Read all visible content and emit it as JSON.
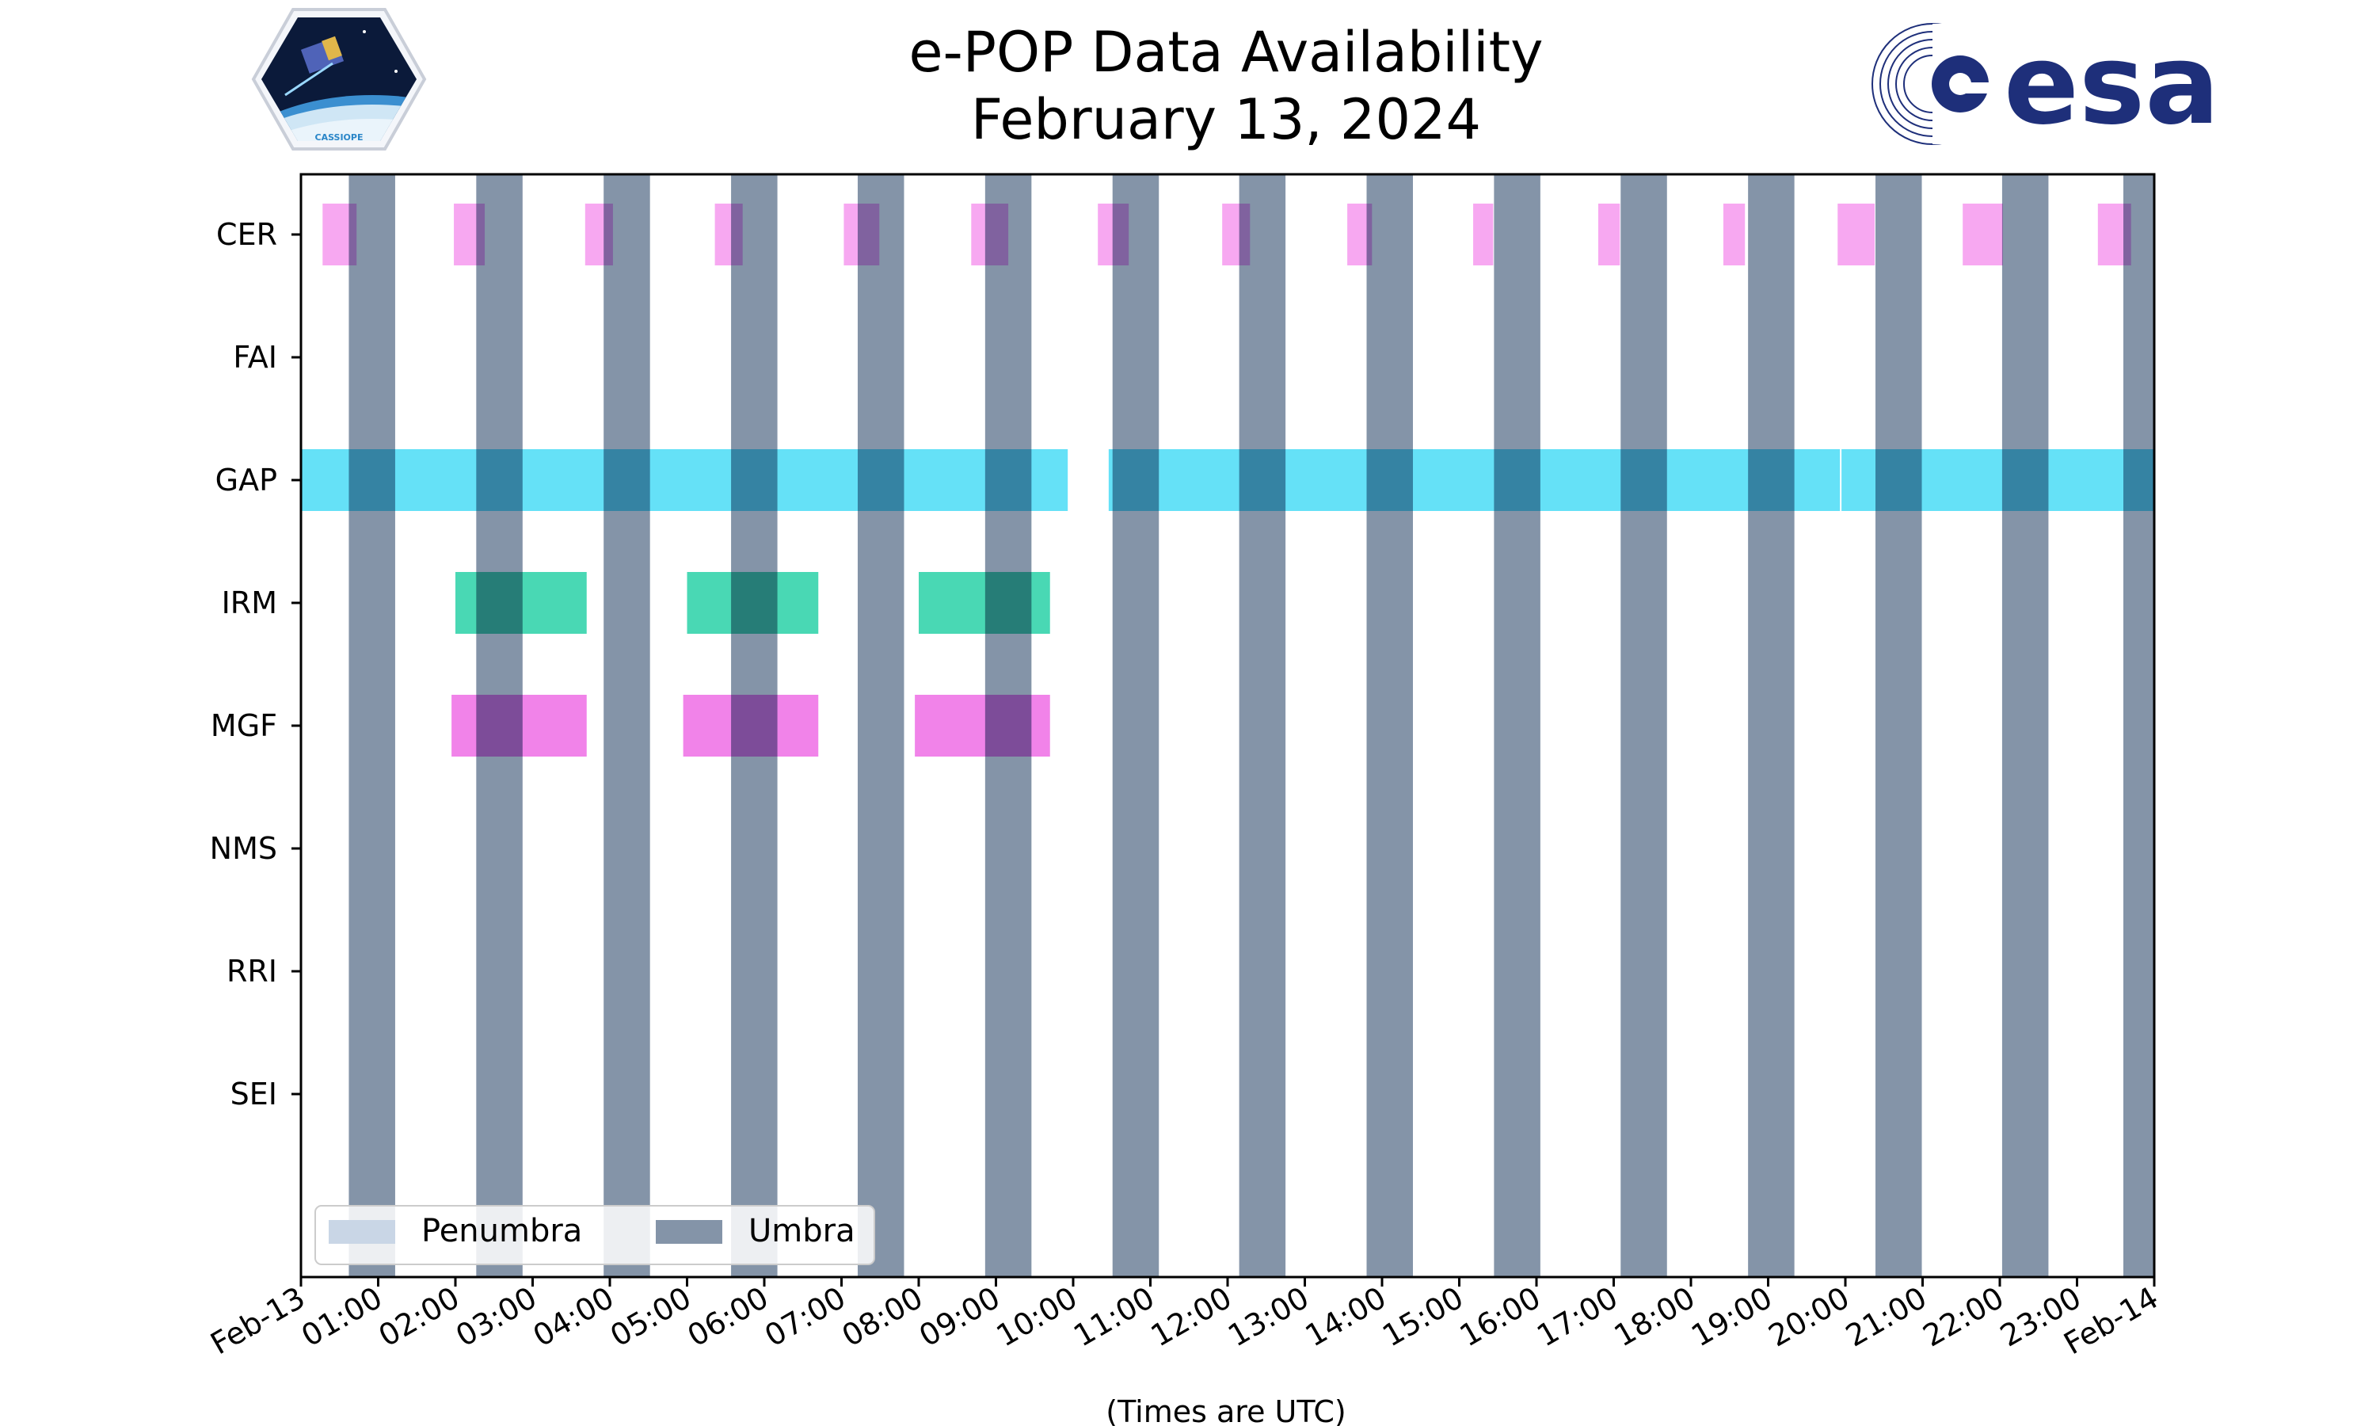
{
  "colors": {
    "umbra": "#8494a8",
    "penumbra": "#c9d6e6",
    "cer": "#f7a3f0",
    "gap": "#5ddff7",
    "irm": "#3fd6b0",
    "mgf": "#f07ce8",
    "esa_blue": "#1e2f7a"
  },
  "logos": {
    "cassiope_caption": "CASSIOPE",
    "esa_word": "esa"
  },
  "chart_data": {
    "type": "timeline",
    "title_lines": [
      "e-POP Data Availability",
      "February 13, 2024"
    ],
    "xlabel": "(Times are UTC)",
    "x_unit": "hours since 2024-02-13 00:00 UTC",
    "xlim": [
      0,
      24
    ],
    "xticks": [
      {
        "hour": 0,
        "label": "Feb-13"
      },
      {
        "hour": 1,
        "label": "01:00"
      },
      {
        "hour": 2,
        "label": "02:00"
      },
      {
        "hour": 3,
        "label": "03:00"
      },
      {
        "hour": 4,
        "label": "04:00"
      },
      {
        "hour": 5,
        "label": "05:00"
      },
      {
        "hour": 6,
        "label": "06:00"
      },
      {
        "hour": 7,
        "label": "07:00"
      },
      {
        "hour": 8,
        "label": "08:00"
      },
      {
        "hour": 9,
        "label": "09:00"
      },
      {
        "hour": 10,
        "label": "10:00"
      },
      {
        "hour": 11,
        "label": "11:00"
      },
      {
        "hour": 12,
        "label": "12:00"
      },
      {
        "hour": 13,
        "label": "13:00"
      },
      {
        "hour": 14,
        "label": "14:00"
      },
      {
        "hour": 15,
        "label": "15:00"
      },
      {
        "hour": 16,
        "label": "16:00"
      },
      {
        "hour": 17,
        "label": "17:00"
      },
      {
        "hour": 18,
        "label": "18:00"
      },
      {
        "hour": 19,
        "label": "19:00"
      },
      {
        "hour": 20,
        "label": "20:00"
      },
      {
        "hour": 21,
        "label": "21:00"
      },
      {
        "hour": 22,
        "label": "22:00"
      },
      {
        "hour": 23,
        "label": "23:00"
      },
      {
        "hour": 24,
        "label": "Feb-14"
      }
    ],
    "instruments": [
      "CER",
      "FAI",
      "GAP",
      "IRM",
      "MGF",
      "NMS",
      "RRI",
      "SEI"
    ],
    "umbra": [
      [
        0.62,
        1.22
      ],
      [
        2.27,
        2.87
      ],
      [
        3.92,
        4.52
      ],
      [
        5.57,
        6.17
      ],
      [
        7.21,
        7.81
      ],
      [
        8.86,
        9.46
      ],
      [
        10.51,
        11.11
      ],
      [
        12.15,
        12.75
      ],
      [
        13.8,
        14.4
      ],
      [
        15.45,
        16.05
      ],
      [
        17.09,
        17.69
      ],
      [
        18.74,
        19.34
      ],
      [
        20.39,
        20.99
      ],
      [
        22.03,
        22.63
      ],
      [
        23.6,
        24.0
      ]
    ],
    "penumbra": [],
    "series": [
      {
        "instrument": "CER",
        "color_key": "cer",
        "intervals": [
          [
            0.28,
            0.72
          ],
          [
            1.98,
            2.38
          ],
          [
            3.68,
            4.04
          ],
          [
            5.36,
            5.72
          ],
          [
            7.03,
            7.49
          ],
          [
            8.68,
            9.16
          ],
          [
            10.32,
            10.72
          ],
          [
            11.93,
            12.29
          ],
          [
            13.55,
            13.87
          ],
          [
            15.18,
            15.44
          ],
          [
            16.8,
            17.08
          ],
          [
            18.42,
            18.7
          ],
          [
            19.9,
            20.38
          ],
          [
            21.52,
            22.04
          ],
          [
            23.27,
            23.7
          ]
        ]
      },
      {
        "instrument": "FAI",
        "color_key": "gap",
        "intervals": []
      },
      {
        "instrument": "GAP",
        "color_key": "gap",
        "intervals": [
          [
            0.0,
            9.93
          ],
          [
            10.46,
            19.93
          ],
          [
            19.95,
            24.0
          ]
        ]
      },
      {
        "instrument": "IRM",
        "color_key": "irm",
        "intervals": [
          [
            2.0,
            3.7
          ],
          [
            5.0,
            6.7
          ],
          [
            8.0,
            9.7
          ]
        ]
      },
      {
        "instrument": "MGF",
        "color_key": "mgf",
        "intervals": [
          [
            1.95,
            3.7
          ],
          [
            4.95,
            6.7
          ],
          [
            7.95,
            9.7
          ]
        ]
      },
      {
        "instrument": "NMS",
        "color_key": "mgf",
        "intervals": []
      },
      {
        "instrument": "RRI",
        "color_key": "mgf",
        "intervals": []
      },
      {
        "instrument": "SEI",
        "color_key": "mgf",
        "intervals": []
      }
    ],
    "legend": {
      "location": "lower-left",
      "entries": [
        {
          "label": "Penumbra",
          "color_key": "penumbra"
        },
        {
          "label": "Umbra",
          "color_key": "umbra"
        }
      ]
    }
  }
}
